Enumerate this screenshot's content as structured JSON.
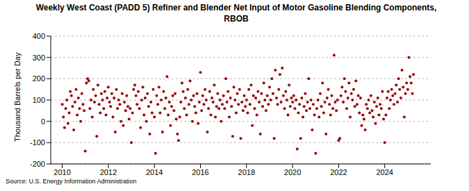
{
  "chart_data": {
    "type": "scatter",
    "title": "Weekly West Coast (PADD 5) Refiner and Blender Net Input of Motor Gasoline Blending Components, RBOB",
    "y_label": "Thousand Barrels per Day",
    "source": "Source: U.S. Energy Information Administration",
    "color": "#990000",
    "marker": "circle",
    "grid": true,
    "xlim": [
      2009.5,
      2026
    ],
    "xticks": [
      2010,
      2012,
      2014,
      2016,
      2018,
      2020,
      2022,
      2024
    ],
    "ylim": [
      -200,
      400
    ],
    "yticks": [
      -200,
      -100,
      0,
      100,
      200,
      300,
      400
    ],
    "x": [
      2010.0,
      2010.05,
      2010.1,
      2010.15,
      2010.2,
      2010.25,
      2010.3,
      2010.35,
      2010.4,
      2010.45,
      2010.5,
      2010.55,
      2010.6,
      2010.65,
      2010.7,
      2010.75,
      2010.8,
      2010.85,
      2010.9,
      2010.95,
      2011.0,
      2011.05,
      2011.1,
      2011.15,
      2011.2,
      2011.25,
      2011.3,
      2011.35,
      2011.4,
      2011.45,
      2011.5,
      2011.55,
      2011.6,
      2011.65,
      2011.7,
      2011.75,
      2011.8,
      2011.85,
      2011.9,
      2011.95,
      2012.0,
      2012.05,
      2012.1,
      2012.15,
      2012.2,
      2012.25,
      2012.3,
      2012.35,
      2012.4,
      2012.45,
      2012.5,
      2012.55,
      2012.6,
      2012.65,
      2012.7,
      2012.75,
      2012.8,
      2012.85,
      2012.9,
      2012.95,
      2013.0,
      2013.05,
      2013.1,
      2013.15,
      2013.2,
      2013.25,
      2013.3,
      2013.35,
      2013.4,
      2013.45,
      2013.5,
      2013.55,
      2013.6,
      2013.65,
      2013.7,
      2013.75,
      2013.8,
      2013.85,
      2013.9,
      2013.95,
      2014.0,
      2014.05,
      2014.1,
      2014.15,
      2014.2,
      2014.25,
      2014.3,
      2014.35,
      2014.4,
      2014.45,
      2014.5,
      2014.55,
      2014.6,
      2014.65,
      2014.7,
      2014.75,
      2014.8,
      2014.85,
      2014.9,
      2014.95,
      2015.0,
      2015.05,
      2015.1,
      2015.15,
      2015.2,
      2015.25,
      2015.3,
      2015.35,
      2015.4,
      2015.45,
      2015.5,
      2015.55,
      2015.6,
      2015.65,
      2015.7,
      2015.75,
      2015.8,
      2015.85,
      2015.9,
      2015.95,
      2016.0,
      2016.05,
      2016.1,
      2016.15,
      2016.2,
      2016.25,
      2016.3,
      2016.35,
      2016.4,
      2016.45,
      2016.5,
      2016.55,
      2016.6,
      2016.65,
      2016.7,
      2016.75,
      2016.8,
      2016.85,
      2016.9,
      2016.95,
      2017.0,
      2017.05,
      2017.1,
      2017.15,
      2017.2,
      2017.25,
      2017.3,
      2017.35,
      2017.4,
      2017.45,
      2017.5,
      2017.55,
      2017.6,
      2017.65,
      2017.7,
      2017.75,
      2017.8,
      2017.85,
      2017.9,
      2017.95,
      2018.0,
      2018.05,
      2018.1,
      2018.15,
      2018.2,
      2018.25,
      2018.3,
      2018.35,
      2018.4,
      2018.45,
      2018.5,
      2018.55,
      2018.6,
      2018.65,
      2018.7,
      2018.75,
      2018.8,
      2018.85,
      2018.9,
      2018.95,
      2019.0,
      2019.05,
      2019.1,
      2019.15,
      2019.2,
      2019.25,
      2019.3,
      2019.35,
      2019.4,
      2019.45,
      2019.5,
      2019.55,
      2019.6,
      2019.65,
      2019.7,
      2019.75,
      2019.8,
      2019.85,
      2019.9,
      2019.95,
      2020.0,
      2020.05,
      2020.1,
      2020.15,
      2020.2,
      2020.25,
      2020.3,
      2020.35,
      2020.4,
      2020.45,
      2020.5,
      2020.55,
      2020.6,
      2020.65,
      2020.7,
      2020.75,
      2020.8,
      2020.85,
      2020.9,
      2020.95,
      2021.0,
      2021.05,
      2021.1,
      2021.15,
      2021.2,
      2021.25,
      2021.3,
      2021.35,
      2021.4,
      2021.45,
      2021.5,
      2021.55,
      2021.6,
      2021.65,
      2021.7,
      2021.75,
      2021.8,
      2021.85,
      2021.9,
      2021.95,
      2022.0,
      2022.05,
      2022.1,
      2022.15,
      2022.2,
      2022.25,
      2022.3,
      2022.35,
      2022.4,
      2022.45,
      2022.5,
      2022.55,
      2022.6,
      2022.65,
      2022.7,
      2022.75,
      2022.8,
      2022.85,
      2022.9,
      2022.95,
      2023.0,
      2023.05,
      2023.1,
      2023.15,
      2023.2,
      2023.25,
      2023.3,
      2023.35,
      2023.4,
      2023.45,
      2023.5,
      2023.55,
      2023.6,
      2023.65,
      2023.7,
      2023.75,
      2023.8,
      2023.85,
      2023.9,
      2023.95,
      2024.0,
      2024.05,
      2024.1,
      2024.15,
      2024.2,
      2024.25,
      2024.3,
      2024.35,
      2024.4,
      2024.45,
      2024.5,
      2024.55,
      2024.6,
      2024.65,
      2024.7,
      2024.75,
      2024.8,
      2024.85,
      2024.9,
      2024.95,
      2025.0,
      2025.05,
      2025.1,
      2025.15,
      2025.2,
      2025.25
    ],
    "values": [
      80,
      20,
      -30,
      60,
      100,
      -10,
      40,
      140,
      120,
      70,
      -40,
      90,
      150,
      30,
      110,
      60,
      0,
      130,
      80,
      50,
      -140,
      180,
      200,
      190,
      60,
      100,
      20,
      150,
      90,
      120,
      -70,
      170,
      80,
      40,
      130,
      100,
      60,
      140,
      30,
      110,
      160,
      90,
      70,
      130,
      20,
      110,
      -50,
      150,
      60,
      100,
      80,
      0,
      130,
      -20,
      90,
      50,
      120,
      70,
      10,
      60,
      -100,
      40,
      150,
      170,
      120,
      80,
      140,
      60,
      -30,
      100,
      160,
      30,
      110,
      0,
      130,
      70,
      -60,
      90,
      40,
      150,
      20,
      -150,
      120,
      80,
      160,
      40,
      100,
      -50,
      140,
      60,
      110,
      210,
      30,
      90,
      -20,
      70,
      120,
      50,
      130,
      10,
      -60,
      -90,
      20,
      90,
      180,
      140,
      60,
      110,
      30,
      150,
      80,
      190,
      100,
      0,
      120,
      70,
      40,
      130,
      -10,
      90,
      230,
      50,
      120,
      80,
      150,
      100,
      -50,
      60,
      140,
      30,
      110,
      90,
      170,
      20,
      70,
      130,
      60,
      100,
      0,
      80,
      120,
      60,
      200,
      90,
      140,
      20,
      110,
      70,
      -70,
      160,
      100,
      40,
      130,
      80,
      150,
      -80,
      90,
      50,
      120,
      70,
      100,
      40,
      150,
      80,
      170,
      -20,
      120,
      60,
      110,
      30,
      140,
      90,
      -60,
      130,
      70,
      180,
      100,
      50,
      120,
      80,
      160,
      100,
      200,
      130,
      -80,
      240,
      110,
      80,
      150,
      220,
      90,
      250,
      120,
      60,
      140,
      100,
      30,
      170,
      70,
      110,
      90,
      120,
      60,
      100,
      -130,
      40,
      80,
      -80,
      110,
      20,
      70,
      130,
      50,
      90,
      200,
      60,
      100,
      -40,
      80,
      30,
      -150,
      60,
      100,
      20,
      130,
      70,
      180,
      40,
      90,
      -60,
      110,
      150,
      80,
      30,
      120,
      60,
      310,
      90,
      50,
      100,
      -90,
      -80,
      120,
      160,
      90,
      200,
      140,
      60,
      110,
      180,
      20,
      130,
      100,
      150,
      70,
      190,
      80,
      120,
      40,
      110,
      -20,
      30,
      10,
      -40,
      80,
      60,
      100,
      40,
      120,
      50,
      20,
      90,
      -10,
      70,
      110,
      30,
      80,
      60,
      140,
      10,
      -100,
      30,
      110,
      140,
      60,
      100,
      150,
      120,
      80,
      130,
      170,
      90,
      200,
      150,
      110,
      240,
      160,
      20,
      130,
      180,
      150,
      300,
      210,
      180,
      130,
      220
    ]
  }
}
